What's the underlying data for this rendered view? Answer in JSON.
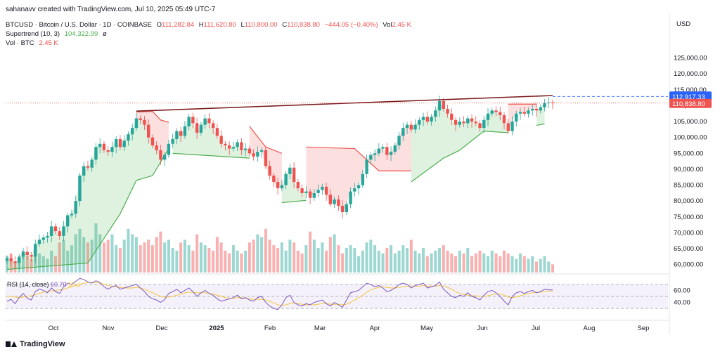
{
  "header": {
    "published": "sahanavv created with TradingView.com, Jul 10, 2025 05:49 UTC-7"
  },
  "legend": {
    "symbol": "BTCUSD · Bitcoin / U.S. Dollar · 1D · COINBASE",
    "o_label": "O",
    "o_value": "111,282.84",
    "h_label": "H",
    "h_value": "111,620.80",
    "l_label": "L",
    "l_value": "110,800.00",
    "c_label": "C",
    "c_value": "110,838.80",
    "change": "−444.05 (−0.40%)",
    "vol_label": "Vol",
    "vol_value": "2.45 K",
    "supertrend_label": "Supertrend (10, 3)",
    "supertrend_value": "104,322.99",
    "supertrend_icon": "ø",
    "volume_label": "Vol · BTC",
    "volume_value": "2.45 K"
  },
  "rsi_legend": {
    "label": "RSI (14, close)",
    "value": "60.70",
    "ma_value": "59.1"
  },
  "axis": {
    "currency": "USD"
  },
  "price_labels": {
    "level_line": "112,917.33",
    "last_price": "110,838.80"
  },
  "footer": {
    "brand": "TradingView"
  },
  "colors": {
    "up": "#26a69a",
    "down": "#ef5350",
    "supertrend_up": "#4caf50",
    "supertrend_down": "#ef5350",
    "trendline": "#7b1d1d",
    "level_line": "#2962ff",
    "rsi": "#7e57c2",
    "rsi_ma": "#f4c542"
  },
  "chart_data": {
    "type": "candlestick",
    "title": "BTCUSD · Bitcoin / U.S. Dollar · 1D · COINBASE",
    "x_ticks": [
      "Oct",
      "Nov",
      "Dec",
      "2025",
      "Feb",
      "Mar",
      "Apr",
      "May",
      "Jun",
      "Jul",
      "Aug",
      "Sep"
    ],
    "price_ticks": [
      "125,000.00",
      "120,000.00",
      "115,000.00",
      "110,000.00",
      "105,000.00",
      "100,000.00",
      "95,000.00",
      "90,000.00",
      "85,000.00",
      "80,000.00",
      "75,000.00",
      "70,000.00",
      "65,000.00",
      "60,000.00"
    ],
    "price_tick_values": [
      125000,
      120000,
      115000,
      110000,
      105000,
      100000,
      95000,
      90000,
      85000,
      80000,
      75000,
      70000,
      65000,
      60000
    ],
    "ylim": [
      57500,
      130000
    ],
    "rsi_ticks": [
      "60.00",
      "40.00"
    ],
    "rsi_tick_values": [
      60,
      40
    ],
    "rsi_bands": [
      70,
      50,
      30
    ],
    "closes": [
      62000,
      61000,
      60500,
      62500,
      64000,
      63000,
      62500,
      66500,
      67800,
      68500,
      69000,
      72000,
      70500,
      69000,
      72000,
      75500,
      76000,
      80000,
      88000,
      91000,
      90500,
      93000,
      97000,
      98000,
      96000,
      95500,
      97000,
      99500,
      97000,
      99000,
      101000,
      103000,
      106000,
      105500,
      104000,
      100000,
      97500,
      96000,
      93000,
      94500,
      98000,
      99500,
      102000,
      100500,
      103500,
      106500,
      104500,
      101500,
      104000,
      106000,
      104500,
      103000,
      100500,
      98000,
      97500,
      96500,
      97000,
      98500,
      96000,
      96500,
      95000,
      94000,
      95500,
      96000,
      91000,
      88000,
      86000,
      84000,
      85000,
      88500,
      90500,
      86000,
      84000,
      82500,
      83000,
      81000,
      82500,
      83500,
      84500,
      82000,
      79000,
      80500,
      78500,
      76500,
      79000,
      83000,
      84000,
      85000,
      88500,
      93000,
      94500,
      95000,
      96500,
      97000,
      94500,
      95500,
      97500,
      100500,
      103000,
      104000,
      102500,
      104000,
      105500,
      106500,
      105000,
      106500,
      108500,
      111500,
      109000,
      107500,
      105500,
      104000,
      105000,
      104500,
      106000,
      105000,
      104500,
      103000,
      105500,
      107500,
      108500,
      108000,
      107000,
      104500,
      102000,
      105000,
      107500,
      108000,
      107500,
      108500,
      109000,
      108500,
      109500,
      110800,
      111000,
      110839
    ],
    "x_year_start_index": 42,
    "supertrend_down": [
      [
        [
          32,
          108000
        ],
        [
          36,
          108200
        ],
        [
          38,
          105500
        ],
        [
          40,
          104800
        ]
      ],
      [
        [
          60,
          103500
        ],
        [
          64,
          97000
        ],
        [
          68,
          95000
        ]
      ],
      [
        [
          74,
          97000
        ],
        [
          86,
          96500
        ],
        [
          92,
          89500
        ],
        [
          100,
          89500
        ]
      ],
      [
        [
          124,
          110500
        ],
        [
          131,
          110500
        ]
      ]
    ],
    "supertrend_up": [
      [
        [
          0,
          58500
        ],
        [
          20,
          60500
        ],
        [
          28,
          76000
        ],
        [
          32,
          86500
        ],
        [
          36,
          88000
        ],
        [
          40,
          96500
        ]
      ],
      [
        [
          41,
          95000
        ],
        [
          60,
          93500
        ]
      ],
      [
        [
          68,
          79500
        ],
        [
          74,
          80200
        ]
      ],
      [
        [
          100,
          86000
        ],
        [
          108,
          93500
        ],
        [
          112,
          96000
        ],
        [
          118,
          102000
        ],
        [
          124,
          101500
        ]
      ],
      [
        [
          131,
          103800
        ],
        [
          133,
          104300
        ]
      ]
    ],
    "trendline": [
      [
        32,
        108300
      ],
      [
        135,
        113200
      ]
    ],
    "level_line_value": 112917.33,
    "last_price_value": 110838.8,
    "volumes": [
      3,
      3.5,
      2,
      2.5,
      4,
      3,
      2.5,
      5,
      3.5,
      3,
      2.5,
      4,
      3,
      5.5,
      6,
      4,
      5,
      7,
      8,
      6.5,
      5.5,
      6,
      9,
      7,
      5.5,
      6,
      7,
      5,
      4.5,
      6,
      8,
      7,
      6.5,
      5,
      5.5,
      6,
      5,
      6.5,
      7.5,
      5.5,
      6,
      4.5,
      4,
      5.5,
      6,
      5,
      4,
      7,
      5.5,
      5,
      4.5,
      4,
      6.5,
      5.5,
      4,
      3.5,
      5,
      4,
      3.5,
      4,
      5.5,
      6,
      7,
      6.5,
      8,
      6,
      5,
      4.5,
      5.5,
      4,
      6,
      5.5,
      4,
      3.5,
      5,
      7.5,
      6,
      4.5,
      5.5,
      4,
      6.5,
      7,
      5,
      3.5,
      4.5,
      5,
      4.5,
      3,
      4,
      5.5,
      6,
      5,
      4,
      3.5,
      4.5,
      5,
      3.5,
      4,
      5,
      4.5,
      6,
      4,
      3.5,
      4.5,
      3,
      3.5,
      4,
      4.5,
      5,
      4,
      3.5,
      3,
      4,
      3.5,
      4.5,
      3,
      3.5,
      4,
      3.5,
      3,
      4,
      3.5,
      3,
      4,
      3.5,
      3,
      2.5,
      3.5,
      3,
      2.5,
      3,
      2,
      2.5,
      3,
      2,
      1.5
    ],
    "rsi": [
      42,
      45,
      38,
      48,
      55,
      47,
      44,
      58,
      62,
      60,
      56,
      64,
      58,
      55,
      66,
      72,
      70,
      75,
      80,
      78,
      74,
      72,
      76,
      73,
      66,
      62,
      66,
      68,
      62,
      64,
      66,
      68,
      70,
      64,
      58,
      50,
      46,
      44,
      40,
      45,
      55,
      58,
      62,
      56,
      60,
      64,
      58,
      50,
      56,
      60,
      55,
      52,
      46,
      42,
      44,
      46,
      48,
      52,
      46,
      48,
      44,
      42,
      48,
      50,
      40,
      34,
      30,
      28,
      36,
      48,
      52,
      40,
      36,
      34,
      38,
      36,
      40,
      42,
      44,
      38,
      34,
      40,
      36,
      32,
      44,
      56,
      58,
      60,
      66,
      72,
      70,
      66,
      68,
      64,
      58,
      60,
      64,
      70,
      72,
      70,
      64,
      68,
      70,
      72,
      64,
      66,
      68,
      74,
      62,
      56,
      50,
      48,
      52,
      50,
      56,
      50,
      48,
      44,
      52,
      58,
      60,
      56,
      50,
      42,
      36,
      50,
      56,
      58,
      55,
      58,
      60,
      56,
      58,
      62,
      61,
      60.7
    ],
    "rsi_ma": [
      50,
      50,
      49,
      48,
      49,
      50,
      51,
      53,
      55,
      57,
      58,
      59,
      60,
      61,
      62,
      64,
      66,
      68,
      70,
      72,
      73,
      73,
      73,
      72,
      70,
      68,
      67,
      66,
      65,
      64,
      64,
      64,
      65,
      64,
      62,
      59,
      56,
      53,
      50,
      49,
      49,
      50,
      52,
      54,
      56,
      57,
      57,
      56,
      56,
      56,
      55,
      54,
      52,
      50,
      48,
      47,
      47,
      48,
      48,
      47,
      46,
      45,
      45,
      45,
      44,
      42,
      39,
      36,
      35,
      36,
      38,
      39,
      38,
      37,
      36,
      36,
      36,
      37,
      38,
      38,
      37,
      37,
      37,
      36,
      37,
      40,
      44,
      48,
      52,
      57,
      61,
      63,
      65,
      66,
      65,
      64,
      64,
      65,
      66,
      67,
      67,
      67,
      67,
      68,
      67,
      67,
      67,
      68,
      67,
      65,
      62,
      58,
      55,
      53,
      52,
      51,
      51,
      50,
      50,
      51,
      53,
      54,
      54,
      52,
      49,
      48,
      49,
      51,
      53,
      55,
      56,
      57,
      57,
      58,
      59,
      59.1
    ]
  }
}
